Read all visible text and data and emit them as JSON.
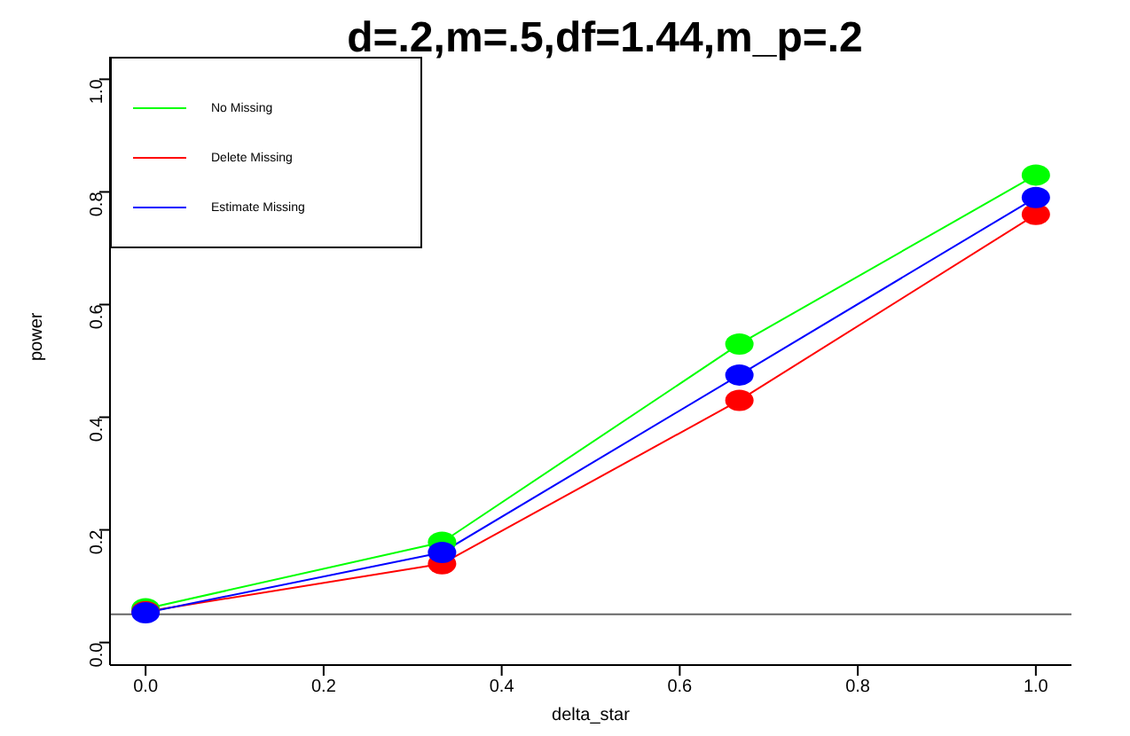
{
  "chart_data": {
    "type": "line",
    "title": "d=.2,m=.5,df=1.44,m_p=.2",
    "xlabel": "delta_star",
    "ylabel": "power",
    "x": [
      0,
      0.333,
      0.667,
      1
    ],
    "series": [
      {
        "name": "No Missing",
        "color": "#00ff00",
        "values": [
          0.06,
          0.178,
          0.53,
          0.83
        ]
      },
      {
        "name": "Delete Missing",
        "color": "#ff0000",
        "values": [
          0.055,
          0.14,
          0.43,
          0.76
        ]
      },
      {
        "name": "Estimate Missing",
        "color": "#0000ff",
        "values": [
          0.053,
          0.16,
          0.475,
          0.79
        ]
      }
    ],
    "xlim": [
      -0.04,
      1.04
    ],
    "xticks": [
      {
        "value": 0,
        "label": "0.0"
      },
      0.2,
      0.4,
      0.6,
      0.8,
      {
        "value": 1,
        "label": "1.0"
      }
    ],
    "ylim": [
      -0.04,
      1.04
    ],
    "yticks": [
      {
        "value": 0,
        "label": "0.0"
      },
      0.2,
      0.4,
      0.6,
      0.8,
      {
        "value": 1,
        "label": "1.0"
      }
    ],
    "ref_lines": [
      {
        "axis": "y",
        "value": 0.05,
        "color": "#666666"
      }
    ],
    "marker": "circle",
    "legend": "top left",
    "grid": false
  }
}
